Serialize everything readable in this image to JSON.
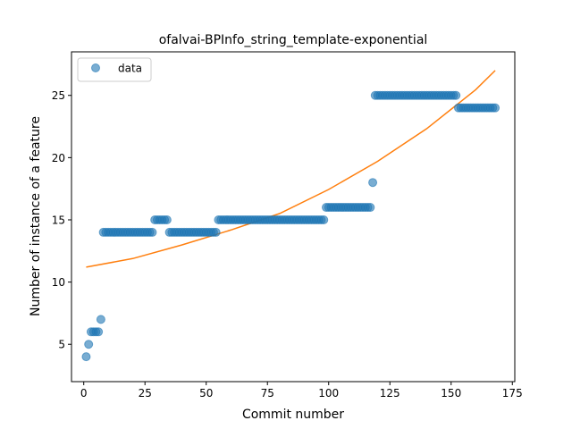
{
  "chart_data": {
    "type": "scatter",
    "title": "ofalvai-BPInfo_string_template-exponential",
    "xlabel": "Commit number",
    "ylabel": "Number of instance of a feature",
    "xlim": [
      -5,
      176
    ],
    "ylim": [
      2,
      28.5
    ],
    "xticks": [
      0,
      25,
      50,
      75,
      100,
      125,
      150,
      175
    ],
    "yticks": [
      5,
      10,
      15,
      20,
      25
    ],
    "legend": {
      "label": "data",
      "position": "top-left"
    },
    "colors": {
      "data": "#1f77b4",
      "fit": "#ff7f0e"
    },
    "series": [
      {
        "name": "data",
        "kind": "scatter",
        "points": [
          [
            1,
            4
          ],
          [
            2,
            5
          ],
          [
            3,
            6
          ],
          [
            4,
            6
          ],
          [
            5,
            6
          ],
          [
            6,
            6
          ],
          [
            7,
            7
          ],
          [
            8,
            14
          ],
          [
            9,
            14
          ],
          [
            10,
            14
          ],
          [
            11,
            14
          ],
          [
            12,
            14
          ],
          [
            13,
            14
          ],
          [
            14,
            14
          ],
          [
            15,
            14
          ],
          [
            16,
            14
          ],
          [
            17,
            14
          ],
          [
            18,
            14
          ],
          [
            19,
            14
          ],
          [
            20,
            14
          ],
          [
            21,
            14
          ],
          [
            22,
            14
          ],
          [
            23,
            14
          ],
          [
            24,
            14
          ],
          [
            25,
            14
          ],
          [
            26,
            14
          ],
          [
            27,
            14
          ],
          [
            28,
            14
          ],
          [
            29,
            15
          ],
          [
            30,
            15
          ],
          [
            31,
            15
          ],
          [
            32,
            15
          ],
          [
            33,
            15
          ],
          [
            34,
            15
          ],
          [
            35,
            14
          ],
          [
            36,
            14
          ],
          [
            37,
            14
          ],
          [
            38,
            14
          ],
          [
            39,
            14
          ],
          [
            40,
            14
          ],
          [
            41,
            14
          ],
          [
            42,
            14
          ],
          [
            43,
            14
          ],
          [
            44,
            14
          ],
          [
            45,
            14
          ],
          [
            46,
            14
          ],
          [
            47,
            14
          ],
          [
            48,
            14
          ],
          [
            49,
            14
          ],
          [
            50,
            14
          ],
          [
            51,
            14
          ],
          [
            52,
            14
          ],
          [
            53,
            14
          ],
          [
            54,
            14
          ],
          [
            55,
            15
          ],
          [
            56,
            15
          ],
          [
            57,
            15
          ],
          [
            58,
            15
          ],
          [
            59,
            15
          ],
          [
            60,
            15
          ],
          [
            61,
            15
          ],
          [
            62,
            15
          ],
          [
            63,
            15
          ],
          [
            64,
            15
          ],
          [
            65,
            15
          ],
          [
            66,
            15
          ],
          [
            67,
            15
          ],
          [
            68,
            15
          ],
          [
            69,
            15
          ],
          [
            70,
            15
          ],
          [
            71,
            15
          ],
          [
            72,
            15
          ],
          [
            73,
            15
          ],
          [
            74,
            15
          ],
          [
            75,
            15
          ],
          [
            76,
            15
          ],
          [
            77,
            15
          ],
          [
            78,
            15
          ],
          [
            79,
            15
          ],
          [
            80,
            15
          ],
          [
            81,
            15
          ],
          [
            82,
            15
          ],
          [
            83,
            15
          ],
          [
            84,
            15
          ],
          [
            85,
            15
          ],
          [
            86,
            15
          ],
          [
            87,
            15
          ],
          [
            88,
            15
          ],
          [
            89,
            15
          ],
          [
            90,
            15
          ],
          [
            91,
            15
          ],
          [
            92,
            15
          ],
          [
            93,
            15
          ],
          [
            94,
            15
          ],
          [
            95,
            15
          ],
          [
            96,
            15
          ],
          [
            97,
            15
          ],
          [
            98,
            15
          ],
          [
            99,
            16
          ],
          [
            100,
            16
          ],
          [
            101,
            16
          ],
          [
            102,
            16
          ],
          [
            103,
            16
          ],
          [
            104,
            16
          ],
          [
            105,
            16
          ],
          [
            106,
            16
          ],
          [
            107,
            16
          ],
          [
            108,
            16
          ],
          [
            109,
            16
          ],
          [
            110,
            16
          ],
          [
            111,
            16
          ],
          [
            112,
            16
          ],
          [
            113,
            16
          ],
          [
            114,
            16
          ],
          [
            115,
            16
          ],
          [
            116,
            16
          ],
          [
            117,
            16
          ],
          [
            118,
            18
          ],
          [
            119,
            25
          ],
          [
            120,
            25
          ],
          [
            121,
            25
          ],
          [
            122,
            25
          ],
          [
            123,
            25
          ],
          [
            124,
            25
          ],
          [
            125,
            25
          ],
          [
            126,
            25
          ],
          [
            127,
            25
          ],
          [
            128,
            25
          ],
          [
            129,
            25
          ],
          [
            130,
            25
          ],
          [
            131,
            25
          ],
          [
            132,
            25
          ],
          [
            133,
            25
          ],
          [
            134,
            25
          ],
          [
            135,
            25
          ],
          [
            136,
            25
          ],
          [
            137,
            25
          ],
          [
            138,
            25
          ],
          [
            139,
            25
          ],
          [
            140,
            25
          ],
          [
            141,
            25
          ],
          [
            142,
            25
          ],
          [
            143,
            25
          ],
          [
            144,
            25
          ],
          [
            145,
            25
          ],
          [
            146,
            25
          ],
          [
            147,
            25
          ],
          [
            148,
            25
          ],
          [
            149,
            25
          ],
          [
            150,
            25
          ],
          [
            151,
            25
          ],
          [
            152,
            25
          ],
          [
            153,
            24
          ],
          [
            154,
            24
          ],
          [
            155,
            24
          ],
          [
            156,
            24
          ],
          [
            157,
            24
          ],
          [
            158,
            24
          ],
          [
            159,
            24
          ],
          [
            160,
            24
          ],
          [
            161,
            24
          ],
          [
            162,
            24
          ],
          [
            163,
            24
          ],
          [
            164,
            24
          ],
          [
            165,
            24
          ],
          [
            166,
            24
          ],
          [
            167,
            24
          ],
          [
            168,
            24
          ]
        ]
      },
      {
        "kind": "line",
        "model": "exponential",
        "x": [
          1,
          20,
          40,
          60,
          80,
          100,
          120,
          140,
          160,
          168
        ],
        "y": [
          11.2,
          11.89,
          12.98,
          14.18,
          15.51,
          17.44,
          19.7,
          22.32,
          25.45,
          27.0
        ]
      }
    ]
  }
}
